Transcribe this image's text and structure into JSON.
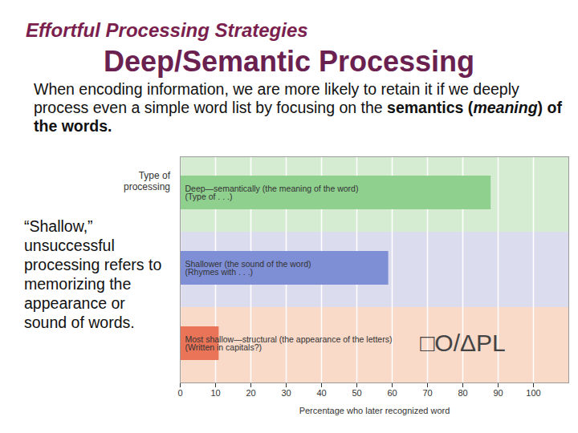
{
  "slide": {
    "heading": "Effortful Processing Strategies",
    "title": "Deep/Semantic Processing",
    "body": [
      "When encoding information, we are more likely to retain it if we deeply process even a simple word list by focusing on the ",
      "semantics (",
      "meaning",
      ") of the words."
    ],
    "side_note": "“Shallow,” unsuccessful processing refers to memorizing the appearance or sound of words."
  },
  "chart_data": {
    "type": "bar",
    "orientation": "horizontal",
    "ylabel": "Type of processing",
    "xlabel": "Percentage who later recognized word",
    "categories": [
      "Deep—semantically (the meaning of the word)\n(Type of . . .)",
      "Shallower (the sound of the word)\n(Rhymes with . . .)",
      "Most shallow—structural (the appearance of the letters)\n(Written in capitals?)"
    ],
    "values": [
      88,
      59,
      11
    ],
    "colors": [
      "#8fd08f",
      "#7f8fd6",
      "#ea7458"
    ],
    "xlim": [
      0,
      110
    ],
    "xticks": [
      0,
      10,
      20,
      30,
      40,
      50,
      60,
      70,
      80,
      90,
      100
    ],
    "grid": true,
    "tick_labels": "x",
    "annotations": [
      {
        "text": "□O/ΔPL",
        "x": 80,
        "y": "Most shallow—structural (the appearance of the letters)\n(Written in capitals?)"
      }
    ]
  }
}
